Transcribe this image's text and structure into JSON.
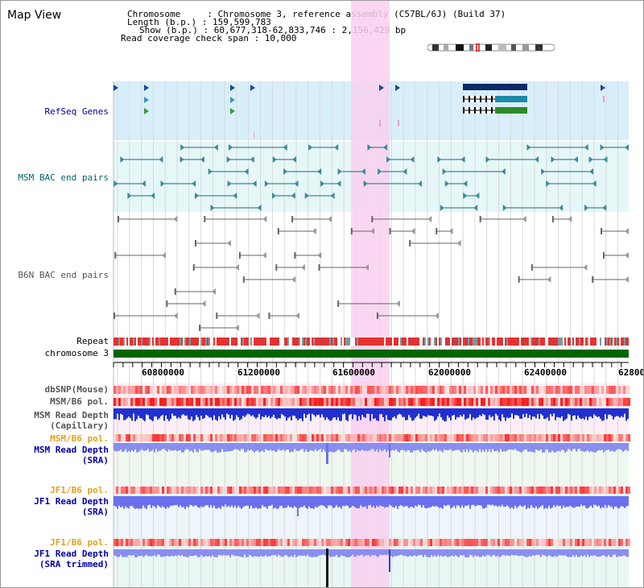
{
  "header": {
    "title": "Map View",
    "info_lines": [
      "Chromosome     : Chromosome 3, reference assembly (C57BL/6J) (Build 37)",
      "Length (b.p.) : 159,599,783",
      "Show (b.p.) : 60,677,318-62,833,746 : 2,156,429 bp",
      "Read coverage check span : 10,000"
    ]
  },
  "tracks": {
    "refseq": "RefSeq Genes",
    "msm_bac": "MSM BAC end pairs",
    "b6n_bac": "B6N BAC end pairs",
    "repeat": "Repeat",
    "chromosome": "chromosome 3"
  },
  "axis": {
    "ticks": [
      "60800000",
      "61200000",
      "61600000",
      "62000000",
      "62400000",
      "62800"
    ]
  },
  "lower_tracks": [
    {
      "label": "dbSNP(Mouse)",
      "color": "#555555"
    },
    {
      "label": "MSM/B6 pol.",
      "color": "#555555"
    },
    {
      "label": "MSM Read Depth\n(Capillary)",
      "color": "#555555"
    },
    {
      "label": "MSM/B6 pol.",
      "color": "#e8a020"
    },
    {
      "label": "MSM Read Depth\n(SRA)",
      "color": "#0000aa"
    },
    {
      "label": "JF1/B6 pol.",
      "color": "#e8a020"
    },
    {
      "label": "JF1 Read Depth\n(SRA)",
      "color": "#0000aa"
    },
    {
      "label": "JF1/B6 pol.",
      "color": "#e8a020"
    },
    {
      "label": "JF1 Read Depth\n(SRA trimmed)",
      "color": "#0000aa"
    }
  ],
  "colors": {
    "refseq_label": "#000099",
    "msm_label": "#006666",
    "b6n_label": "#555555",
    "highlight": "#f8d0f0",
    "chromosome_bar": "#006600"
  }
}
